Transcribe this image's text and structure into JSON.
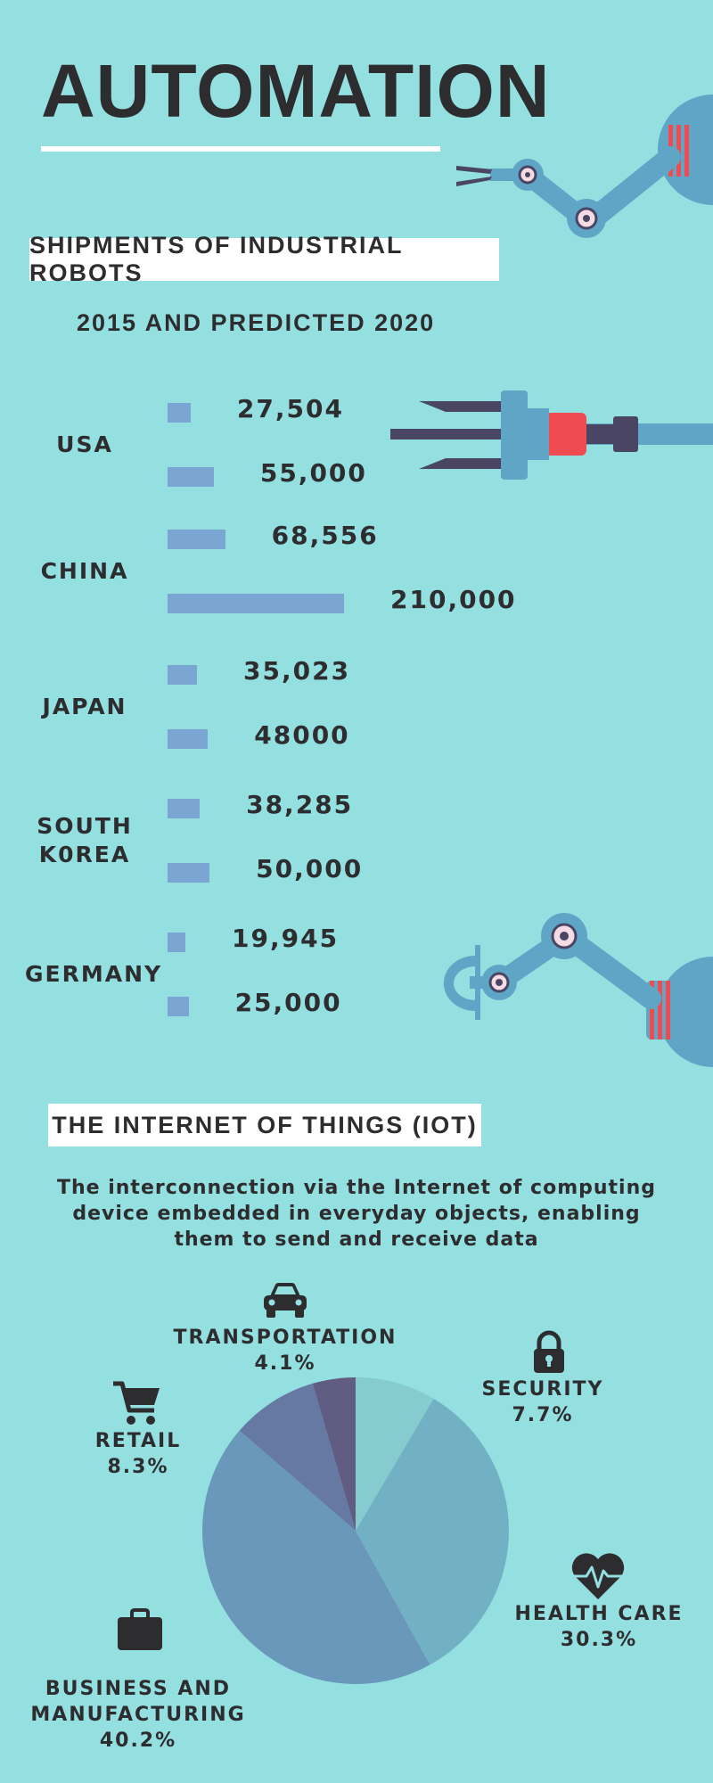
{
  "title": "AUTOMATION",
  "section1": {
    "heading": "SHIPMENTS OF INDUSTRIAL ROBOTS",
    "subtitle": "2015 AND PREDICTED 2020"
  },
  "section2": {
    "heading": "THE INTERNET OF THINGS (IOT)",
    "description": "The interconnection via the Internet of computing device embedded in everyday objects, enabling them to send and receive data"
  },
  "colors": {
    "background": "#94dfe0",
    "bar": "#7ba6d4",
    "text": "#2d2d30",
    "robot_arm": "#5fa6c6",
    "robot_accent": "#ef4b50",
    "robot_dark": "#4a4563"
  },
  "chart_data": [
    {
      "type": "bar",
      "orientation": "horizontal",
      "categories": [
        "USA",
        "CHINA",
        "JAPAN",
        "SOUTH K0REA",
        "GERMANY"
      ],
      "category_lines": [
        [
          "USA"
        ],
        [
          "CHINA"
        ],
        [
          "JAPAN"
        ],
        [
          "SOUTH",
          "K0REA"
        ],
        [
          "GERMANY"
        ]
      ],
      "series": [
        {
          "values": [
            27504,
            68556,
            35023,
            38285,
            19945
          ]
        },
        {
          "values": [
            55000,
            210000,
            48000,
            50000,
            25000
          ]
        }
      ],
      "value_labels": [
        [
          "27,504",
          "68,556",
          "35,023",
          "38,285",
          "19,945"
        ],
        [
          "55,000",
          "210,000",
          "48000",
          "50,000",
          "25,000"
        ]
      ]
    },
    {
      "type": "pie",
      "slices": [
        {
          "label": "SECURITY",
          "label_lines": [
            "SECURITY"
          ],
          "value": 7.7,
          "value_label": "7.7%",
          "color": "#86cccf",
          "icon": "lock-icon"
        },
        {
          "label": "HEALTH CARE",
          "label_lines": [
            "HEALTH CARE"
          ],
          "value": 30.3,
          "value_label": "30.3%",
          "color": "#71b1c3",
          "icon": "heart-pulse-icon"
        },
        {
          "label": "BUSINESS AND MANUFACTURING",
          "label_lines": [
            "BUSINESS AND",
            "MANUFACTURING"
          ],
          "value": 40.2,
          "value_label": "40.2%",
          "color": "#6a98bb",
          "icon": "briefcase-icon"
        },
        {
          "label": "RETAIL",
          "label_lines": [
            "RETAIL"
          ],
          "value": 8.3,
          "value_label": "8.3%",
          "color": "#6679a2",
          "icon": "shopping-cart-icon"
        },
        {
          "label": "TRANSPORTATION",
          "label_lines": [
            "TRANSPORTATION"
          ],
          "value": 4.1,
          "value_label": "4.1%",
          "color": "#615d82",
          "icon": "car-icon"
        }
      ]
    }
  ]
}
